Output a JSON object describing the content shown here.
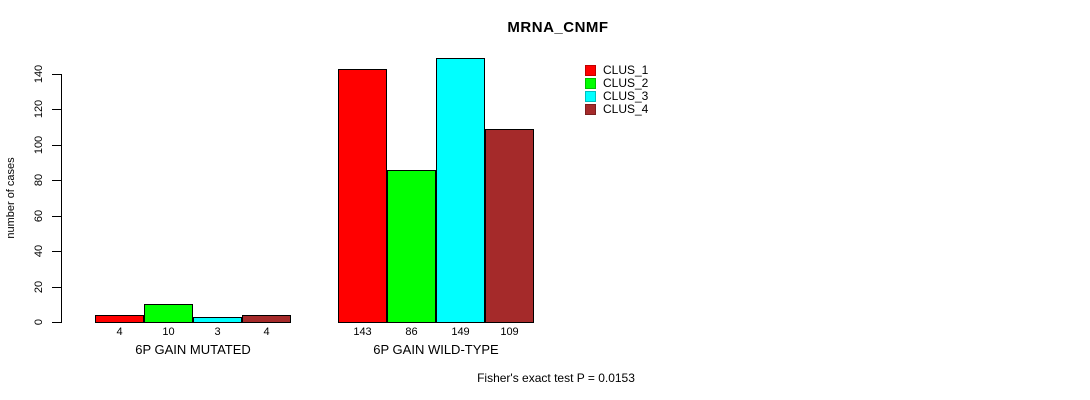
{
  "title": "MRNA_CNMF",
  "footer_note": "Fisher's exact test P = 0.0153",
  "colors": {
    "background": "#ffffff",
    "axis": "#000000",
    "clus_1": "#ff0000",
    "clus_2": "#00ff00",
    "clus_3": "#00ffff",
    "clus_4": "#a52a2a"
  },
  "chart_data": {
    "type": "bar",
    "title": "MRNA_CNMF",
    "xlabel": "",
    "ylabel": "number of cases",
    "categories": [
      "6P GAIN MUTATED",
      "6P GAIN WILD-TYPE"
    ],
    "series": [
      {
        "name": "CLUS_1",
        "color": "#ff0000",
        "values": [
          4,
          143
        ]
      },
      {
        "name": "CLUS_2",
        "color": "#00ff00",
        "values": [
          10,
          86
        ]
      },
      {
        "name": "CLUS_3",
        "color": "#00ffff",
        "values": [
          3,
          149
        ]
      },
      {
        "name": "CLUS_4",
        "color": "#a52a2a",
        "values": [
          4,
          109
        ]
      }
    ],
    "bar_value_labels": [
      [
        "4",
        "10",
        "3",
        "4"
      ],
      [
        "143",
        "86",
        "149",
        "109"
      ]
    ],
    "yticks": [
      0,
      20,
      40,
      60,
      80,
      100,
      120,
      140
    ],
    "ylim": [
      0,
      150
    ],
    "grid": false,
    "legend_position": "top-right",
    "annotation": "Fisher's exact test P = 0.0153"
  }
}
